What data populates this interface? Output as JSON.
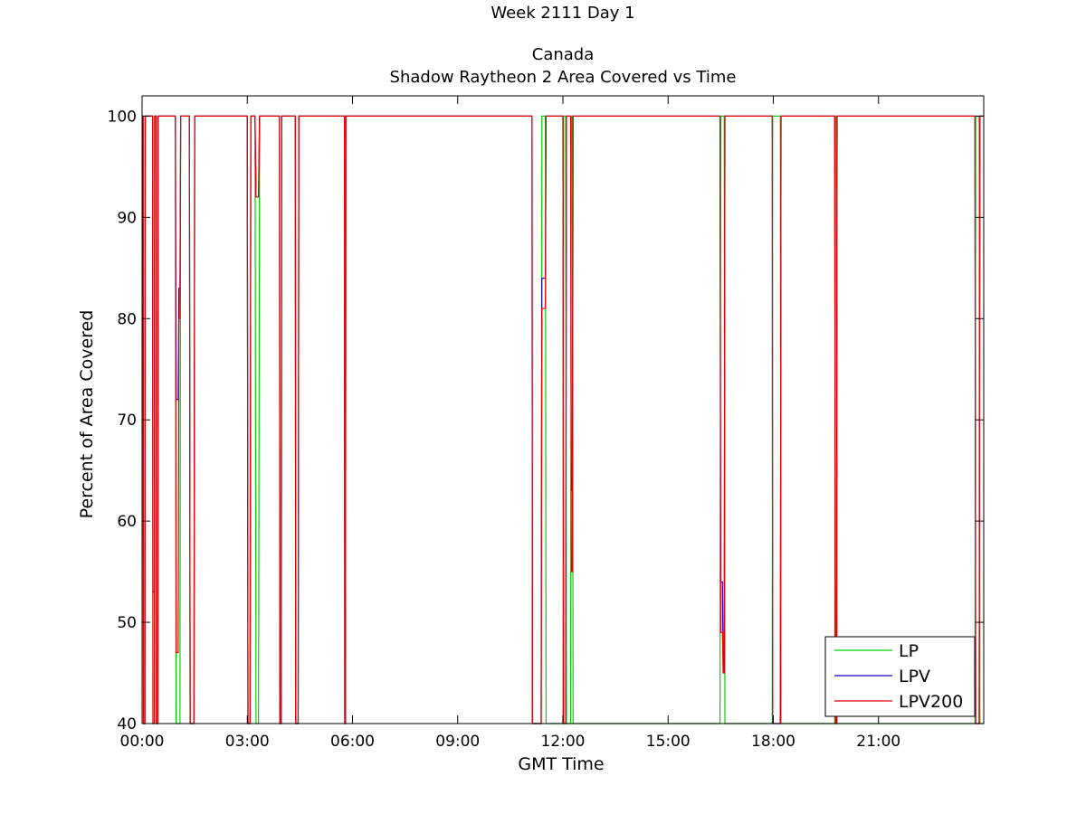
{
  "colors": {
    "LP": "#00d000",
    "LPV": "#1a00c8",
    "LPV200": "#ee0000",
    "axis": "#000000",
    "background": "#ffffff"
  },
  "chart_data": {
    "type": "line",
    "title_lines": [
      "Week 2111 Day 1",
      "Canada",
      "Shadow Raytheon 2 Area Covered vs Time"
    ],
    "xlabel": "GMT Time",
    "ylabel": "Percent of Area Covered",
    "xlim_hours": [
      0,
      24
    ],
    "ylim": [
      40,
      102
    ],
    "x_ticks": [
      {
        "hour": 0,
        "label": "00:00"
      },
      {
        "hour": 3,
        "label": "03:00"
      },
      {
        "hour": 6,
        "label": "06:00"
      },
      {
        "hour": 9,
        "label": "09:00"
      },
      {
        "hour": 12,
        "label": "12:00"
      },
      {
        "hour": 15,
        "label": "15:00"
      },
      {
        "hour": 18,
        "label": "18:00"
      },
      {
        "hour": 21,
        "label": "21:00"
      }
    ],
    "y_ticks": [
      {
        "value": 40,
        "label": "40"
      },
      {
        "value": 50,
        "label": "50"
      },
      {
        "value": 60,
        "label": "60"
      },
      {
        "value": 70,
        "label": "70"
      },
      {
        "value": 80,
        "label": "80"
      },
      {
        "value": 90,
        "label": "90"
      },
      {
        "value": 100,
        "label": "100"
      }
    ],
    "grid": false,
    "legend": {
      "placement": "bottom-right",
      "entries": [
        "LP",
        "LPV",
        "LPV200"
      ]
    },
    "series": [
      {
        "name": "LP",
        "color": "#00d000",
        "x_hours": [
          0,
          0.03,
          0.04,
          0.08,
          0.09,
          0.3,
          0.31,
          0.35,
          0.36,
          0.4,
          0.41,
          0.45,
          0.46,
          0.95,
          0.97,
          1.08,
          1.1,
          1.35,
          1.37,
          1.48,
          1.5,
          3.0,
          3.02,
          3.08,
          3.1,
          3.22,
          3.25,
          3.32,
          3.35,
          3.92,
          3.93,
          3.97,
          3.98,
          4.37,
          4.38,
          4.45,
          4.47,
          5.77,
          5.78,
          5.8,
          5.81,
          11.12,
          11.13,
          11.38,
          11.4,
          11.5,
          11.52,
          12.0,
          12.02,
          12.08,
          12.1,
          12.22,
          12.24,
          12.27,
          12.29,
          16.48,
          16.5,
          16.6,
          16.62,
          17.97,
          17.98,
          18.2,
          18.22,
          19.75,
          19.77,
          19.8,
          19.82,
          23.75,
          23.77,
          23.87,
          23.89,
          24.0
        ],
        "y": [
          100,
          100,
          40,
          40,
          100,
          100,
          40,
          40,
          100,
          100,
          40,
          40,
          100,
          100,
          40,
          40,
          100,
          100,
          40,
          40,
          100,
          100,
          40,
          40,
          100,
          100,
          40,
          40,
          100,
          100,
          40,
          40,
          100,
          100,
          40,
          40,
          100,
          100,
          40,
          40,
          100,
          100,
          40,
          40,
          100,
          100,
          40,
          40,
          100,
          100,
          40,
          40,
          100,
          100,
          40,
          40,
          100,
          100,
          40,
          40,
          100,
          100,
          40,
          40,
          100,
          100,
          40,
          40,
          100,
          100,
          40,
          40
        ]
      },
      {
        "name": "LPV",
        "color": "#1a00c8",
        "x_hours": [
          0,
          0.03,
          0.04,
          0.08,
          0.09,
          0.3,
          0.31,
          0.35,
          0.36,
          0.4,
          0.41,
          0.45,
          0.46,
          0.95,
          0.97,
          1.03,
          1.05,
          1.08,
          1.1,
          1.35,
          1.37,
          1.48,
          1.5,
          3.0,
          3.02,
          3.08,
          3.1,
          3.22,
          3.25,
          3.32,
          3.35,
          3.92,
          3.93,
          3.97,
          3.98,
          4.37,
          4.38,
          4.45,
          4.47,
          5.77,
          5.78,
          5.8,
          5.81,
          11.12,
          11.13,
          11.38,
          11.4,
          11.5,
          11.52,
          12.0,
          12.02,
          12.08,
          12.1,
          12.22,
          12.24,
          12.27,
          12.29,
          16.48,
          16.5,
          16.55,
          16.57,
          16.6,
          16.62,
          17.97,
          17.98,
          18.2,
          18.22,
          19.75,
          19.77,
          19.8,
          19.82,
          23.75,
          23.77,
          23.87,
          23.89,
          24.0
        ],
        "y": [
          100,
          100,
          40,
          40,
          100,
          100,
          53,
          53,
          100,
          100,
          40,
          40,
          100,
          100,
          72,
          72,
          83,
          83,
          100,
          100,
          40,
          40,
          100,
          100,
          40,
          40,
          100,
          100,
          92,
          92,
          100,
          100,
          40,
          40,
          100,
          100,
          40,
          40,
          100,
          100,
          40,
          40,
          100,
          100,
          40,
          40,
          84,
          84,
          100,
          100,
          40,
          40,
          100,
          100,
          63,
          63,
          100,
          100,
          54,
          54,
          45,
          45,
          100,
          100,
          40,
          40,
          100,
          100,
          40,
          40,
          100,
          100,
          40,
          40,
          100,
          100
        ]
      },
      {
        "name": "LPV200",
        "color": "#ee0000",
        "x_hours": [
          0,
          0.03,
          0.04,
          0.08,
          0.09,
          0.3,
          0.31,
          0.35,
          0.36,
          0.4,
          0.41,
          0.45,
          0.46,
          0.95,
          0.97,
          1.03,
          1.05,
          1.08,
          1.1,
          1.35,
          1.37,
          1.48,
          1.5,
          3.0,
          3.02,
          3.08,
          3.1,
          3.22,
          3.25,
          3.32,
          3.35,
          3.92,
          3.93,
          3.97,
          3.98,
          4.37,
          4.38,
          4.45,
          4.47,
          5.77,
          5.78,
          5.8,
          5.81,
          11.12,
          11.13,
          11.38,
          11.4,
          11.5,
          11.52,
          12.0,
          12.02,
          12.08,
          12.1,
          12.22,
          12.24,
          12.27,
          12.29,
          16.48,
          16.5,
          16.55,
          16.57,
          16.6,
          16.62,
          17.97,
          17.98,
          18.2,
          18.22,
          19.75,
          19.77,
          19.8,
          19.82,
          23.75,
          23.77,
          23.87,
          23.89,
          24.0
        ],
        "y": [
          100,
          100,
          40,
          40,
          100,
          100,
          40,
          40,
          100,
          100,
          40,
          40,
          100,
          100,
          47,
          47,
          80,
          80,
          100,
          100,
          40,
          40,
          100,
          100,
          40,
          40,
          100,
          100,
          92,
          92,
          100,
          100,
          40,
          40,
          100,
          100,
          40,
          40,
          100,
          100,
          40,
          40,
          100,
          100,
          40,
          40,
          81,
          81,
          100,
          100,
          40,
          40,
          100,
          100,
          55,
          55,
          100,
          100,
          49,
          49,
          45,
          45,
          100,
          100,
          40,
          40,
          100,
          100,
          40,
          40,
          100,
          100,
          40,
          40,
          100,
          100
        ]
      }
    ]
  }
}
